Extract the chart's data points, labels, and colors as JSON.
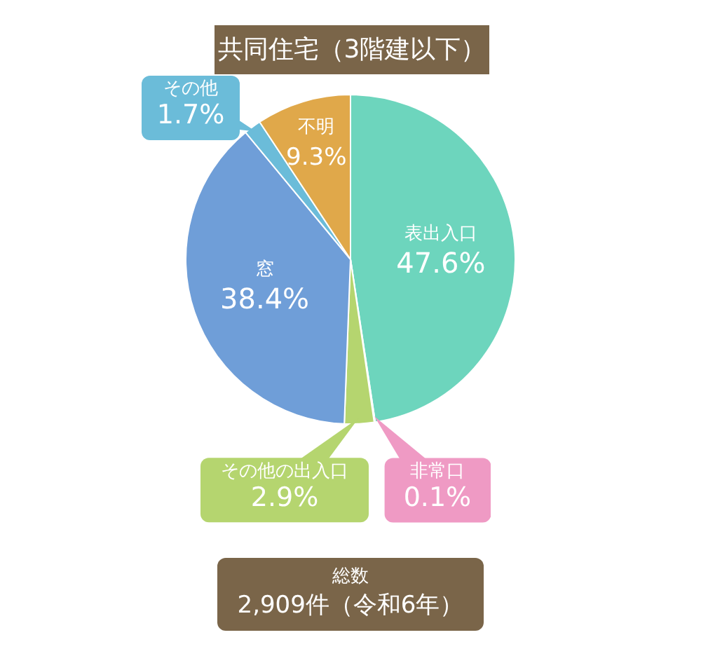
{
  "chart_data": {
    "type": "pie",
    "title": "共同住宅（3階建以下）",
    "categories": [
      "表出入口",
      "非常口",
      "その他の出入口",
      "窓",
      "その他",
      "不明"
    ],
    "values": [
      47.6,
      0.1,
      2.9,
      38.4,
      1.7,
      9.3
    ],
    "colors": [
      "#6dd5bd",
      "#ef9ac4",
      "#b5d56f",
      "#6f9ed8",
      "#6bbcd9",
      "#e0a84a"
    ],
    "value_labels": [
      "47.6%",
      "0.1%",
      "2.9%",
      "38.4%",
      "1.7%",
      "9.3%"
    ],
    "annotations": [
      "総数",
      "2,909件（令和6年）"
    ]
  }
}
